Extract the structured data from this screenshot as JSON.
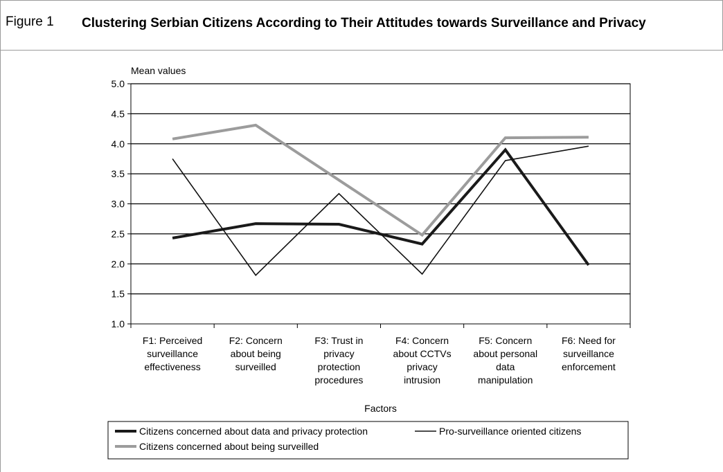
{
  "figure": {
    "label": "Figure 1",
    "title": "Clustering Serbian Citizens According to Their Attitudes towards Surveillance and Privacy"
  },
  "chart_data": {
    "type": "line",
    "ylabel": "Mean values",
    "xlabel": "Factors",
    "ylim": [
      1.0,
      5.0
    ],
    "yticks": [
      "1.0",
      "1.5",
      "2.0",
      "2.5",
      "3.0",
      "3.5",
      "4.0",
      "4.5",
      "5.0"
    ],
    "grid": true,
    "legend_position": "bottom",
    "categories": [
      [
        "F1: Perceived",
        "surveillance",
        "effectiveness"
      ],
      [
        "F2: Concern",
        "about being",
        "surveilled"
      ],
      [
        "F3: Trust in",
        "privacy",
        "protection",
        "procedures"
      ],
      [
        "F4: Concern",
        "about CCTVs",
        "privacy",
        "intrusion"
      ],
      [
        "F5: Concern",
        "about personal",
        "data",
        "manipulation"
      ],
      [
        "F6: Need for",
        "surveillance",
        "enforcement"
      ]
    ],
    "series": [
      {
        "name": "Citizens concerned about data and privacy protection",
        "values": [
          2.43,
          2.67,
          2.66,
          2.33,
          3.9,
          1.98
        ],
        "color": "#1a1a1a",
        "width": 4
      },
      {
        "name": "Pro-surveillance oriented citizens",
        "values": [
          3.75,
          1.81,
          3.17,
          1.83,
          3.72,
          3.96
        ],
        "color": "#111111",
        "width": 1.6
      },
      {
        "name": "Citizens concerned about being surveilled",
        "values": [
          4.08,
          4.31,
          null,
          2.48,
          4.1,
          4.11
        ],
        "color": "#9c9c9c",
        "width": 4
      }
    ]
  }
}
